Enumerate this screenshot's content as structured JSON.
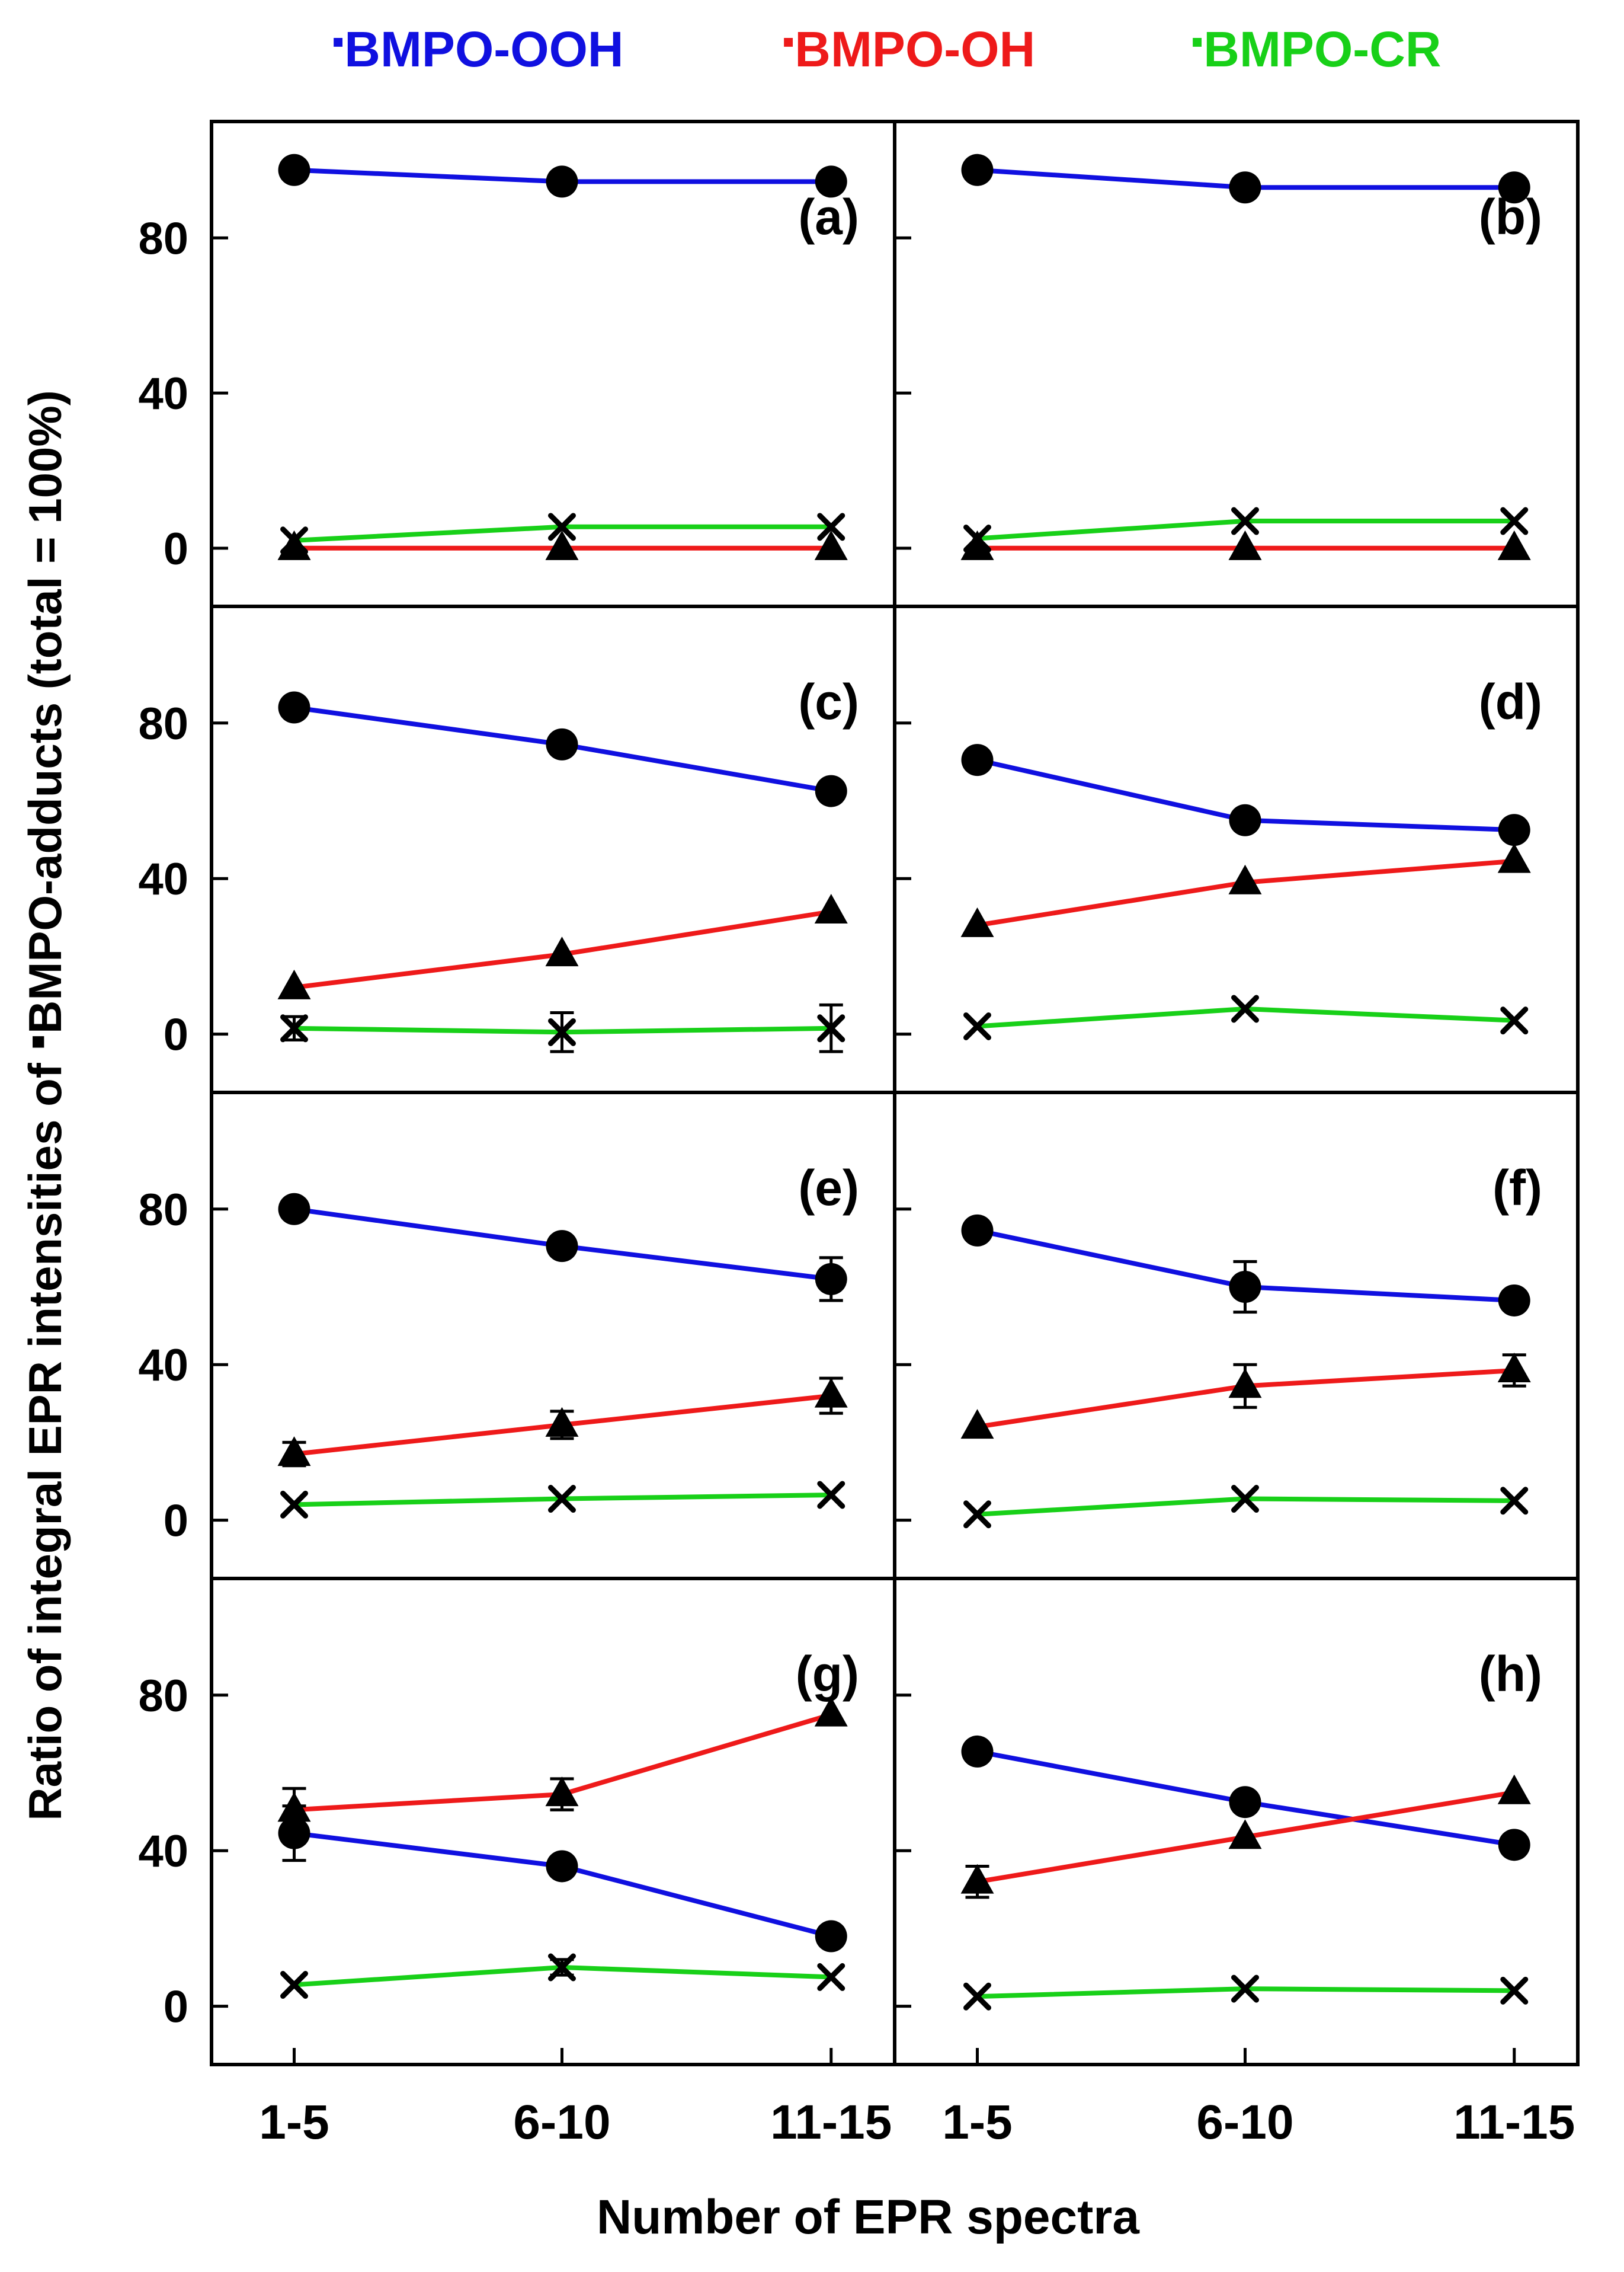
{
  "legend": {
    "items": [
      {
        "name": "BMPO-OOH",
        "color": "#1010e0"
      },
      {
        "name": "BMPO-OH",
        "color": "#ee1a1a"
      },
      {
        "name": "BMPO-CR",
        "color": "#18d018"
      }
    ]
  },
  "ylabel_main": "Ratio of integral EPR intensities of ",
  "ylabel_tail": "BMPO-adducts (total = 100%)",
  "xlabel": "Number of EPR spectra",
  "chart_data": {
    "type": "line",
    "categories": [
      "1-5",
      "6-10",
      "11-15"
    ],
    "xlabel": "Number of EPR spectra",
    "ylabel": "Ratio of integral EPR intensities of BMPO-adducts (total = 100%)",
    "ylim": [
      -15,
      110
    ],
    "yticks": [
      0,
      40,
      80
    ],
    "series_styles": [
      {
        "name": "BMPO-OOH",
        "color": "#1010e0",
        "marker": "circle"
      },
      {
        "name": "BMPO-OH",
        "color": "#ee1a1a",
        "marker": "triangle"
      },
      {
        "name": "BMPO-CR",
        "color": "#18d018",
        "marker": "x"
      }
    ],
    "panels": [
      {
        "label": "(a)",
        "series": [
          {
            "name": "BMPO-OOH",
            "values": [
              97.5,
              94.5,
              94.5
            ],
            "errors": [
              0,
              0,
              0
            ]
          },
          {
            "name": "BMPO-OH",
            "values": [
              0,
              0,
              0
            ],
            "errors": [
              0,
              0,
              0
            ]
          },
          {
            "name": "BMPO-CR",
            "values": [
              2,
              5.5,
              5.5
            ],
            "errors": [
              0,
              0,
              0
            ]
          }
        ]
      },
      {
        "label": "(b)",
        "series": [
          {
            "name": "BMPO-OOH",
            "values": [
              97.5,
              93,
              93
            ],
            "errors": [
              0,
              0,
              0
            ]
          },
          {
            "name": "BMPO-OH",
            "values": [
              0,
              0,
              0
            ],
            "errors": [
              0,
              0,
              0
            ]
          },
          {
            "name": "BMPO-CR",
            "values": [
              2.5,
              7,
              7
            ],
            "errors": [
              0,
              0,
              0
            ]
          }
        ]
      },
      {
        "label": "(c)",
        "series": [
          {
            "name": "BMPO-OOH",
            "values": [
              84,
              74.5,
              62.5
            ],
            "errors": [
              0,
              0,
              0
            ]
          },
          {
            "name": "BMPO-OH",
            "values": [
              12,
              20.5,
              31.5
            ],
            "errors": [
              0,
              0,
              0
            ]
          },
          {
            "name": "BMPO-CR",
            "values": [
              1.5,
              0.5,
              1.5
            ],
            "errors": [
              3,
              5,
              6
            ]
          }
        ]
      },
      {
        "label": "(d)",
        "series": [
          {
            "name": "BMPO-OOH",
            "values": [
              70.5,
              55,
              52.5
            ],
            "errors": [
              0,
              0,
              0
            ]
          },
          {
            "name": "BMPO-OH",
            "values": [
              28,
              39,
              44.5
            ],
            "errors": [
              0,
              0,
              0
            ]
          },
          {
            "name": "BMPO-CR",
            "values": [
              2,
              6.5,
              3.5
            ],
            "errors": [
              0,
              0,
              0
            ]
          }
        ]
      },
      {
        "label": "(e)",
        "series": [
          {
            "name": "BMPO-OOH",
            "values": [
              80,
              70.5,
              62
            ],
            "errors": [
              0,
              0,
              5.5
            ]
          },
          {
            "name": "BMPO-OH",
            "values": [
              17,
              24.5,
              32
            ],
            "errors": [
              3,
              3.5,
              4.5
            ]
          },
          {
            "name": "BMPO-CR",
            "values": [
              4,
              5.5,
              6.5
            ],
            "errors": [
              0,
              0,
              0
            ]
          }
        ]
      },
      {
        "label": "(f)",
        "series": [
          {
            "name": "BMPO-OOH",
            "values": [
              74.5,
              60,
              56.5
            ],
            "errors": [
              0,
              6.5,
              0
            ]
          },
          {
            "name": "BMPO-OH",
            "values": [
              24,
              34.5,
              38.5
            ],
            "errors": [
              0,
              5.5,
              4
            ]
          },
          {
            "name": "BMPO-CR",
            "values": [
              1.5,
              5.5,
              5
            ],
            "errors": [
              0,
              0,
              0
            ]
          }
        ]
      },
      {
        "label": "(g)",
        "series": [
          {
            "name": "BMPO-OOH",
            "values": [
              44.5,
              36,
              18
            ],
            "errors": [
              7,
              0,
              0
            ]
          },
          {
            "name": "BMPO-OH",
            "values": [
              50.5,
              54.5,
              75
            ],
            "errors": [
              5.5,
              4,
              0
            ]
          },
          {
            "name": "BMPO-CR",
            "values": [
              5.5,
              10,
              7.5
            ],
            "errors": [
              0,
              2,
              0
            ]
          }
        ]
      },
      {
        "label": "(h)",
        "series": [
          {
            "name": "BMPO-OOH",
            "values": [
              65.5,
              52.5,
              41.5
            ],
            "errors": [
              0,
              0,
              0
            ]
          },
          {
            "name": "BMPO-OH",
            "values": [
              32,
              43.5,
              55
            ],
            "errors": [
              4,
              0,
              0
            ]
          },
          {
            "name": "BMPO-CR",
            "values": [
              2.5,
              4.5,
              4
            ],
            "errors": [
              0,
              0,
              0
            ]
          }
        ]
      }
    ]
  }
}
